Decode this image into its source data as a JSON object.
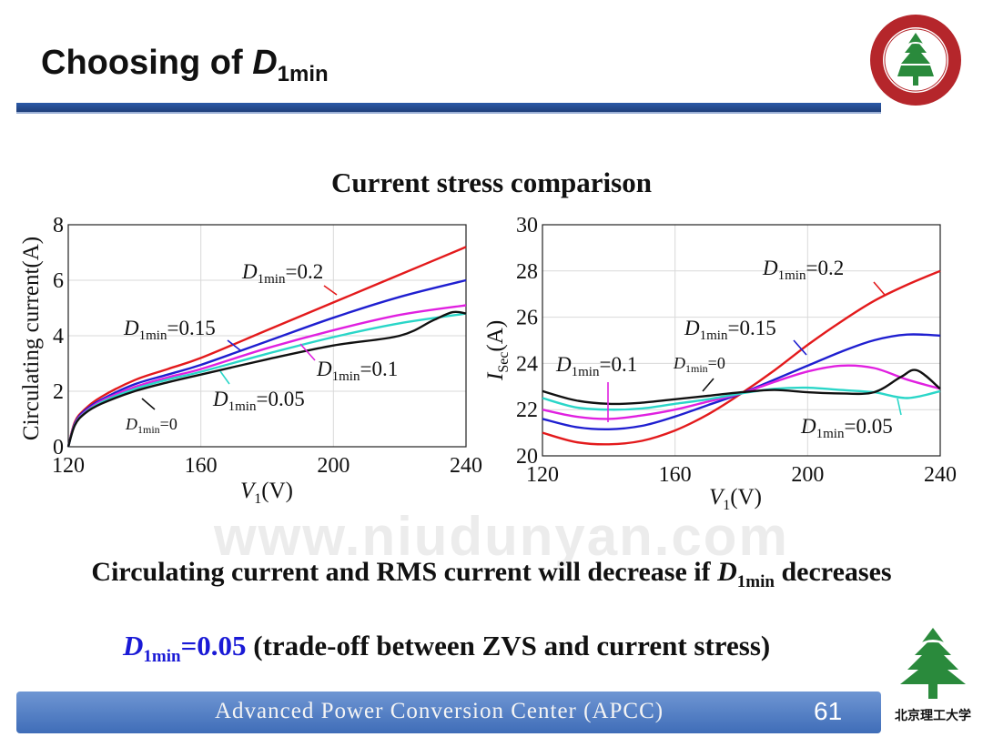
{
  "slide": {
    "title_text": "Choosing of",
    "title_var": "D",
    "title_sub": "1min",
    "subtitle": "Current stress comparison",
    "conclusion_pre": "Circulating current and RMS current will decrease if ",
    "conclusion_var": "D",
    "conclusion_sub": "1min",
    "conclusion_post": " decreases",
    "choice_var": "D",
    "choice_sub": "1min",
    "choice_value": "=0.05",
    "choice_note": " (trade-off between ZVS and current stress)",
    "footer_text": "Advanced  Power  Conversion  Center (APCC)",
    "page_number": "61",
    "watermark": "www.niudunyan.com",
    "logo_bottom_text": "北京理工大学",
    "colors": {
      "rule": "#2b5aa8",
      "footer": "#4f7cc2",
      "highlight": "#1a1ad6"
    }
  },
  "chart_data": [
    {
      "type": "line",
      "ylabel": "Circulating current(A)",
      "xlabel_var": "V",
      "xlabel_sub": "1",
      "xlabel_unit": "(V)",
      "xlim": [
        120,
        240
      ],
      "ylim": [
        0,
        8
      ],
      "xticks": [
        "120",
        "160",
        "200",
        "240"
      ],
      "yticks": [
        "0",
        "2",
        "4",
        "6",
        "8"
      ],
      "grid": true,
      "series": [
        {
          "name": "D1min=0.2",
          "color": "#e31a1c",
          "x": [
            120,
            122,
            125,
            130,
            140,
            150,
            160,
            180,
            200,
            220,
            240
          ],
          "y": [
            0,
            0.9,
            1.35,
            1.8,
            2.4,
            2.8,
            3.2,
            4.2,
            5.2,
            6.2,
            7.2
          ]
        },
        {
          "name": "D1min=0.15",
          "color": "#1f1fd0",
          "x": [
            120,
            122,
            125,
            130,
            140,
            150,
            160,
            180,
            200,
            220,
            240
          ],
          "y": [
            0,
            0.85,
            1.3,
            1.7,
            2.25,
            2.6,
            2.95,
            3.8,
            4.65,
            5.4,
            6.0
          ]
        },
        {
          "name": "D1min=0.1",
          "color": "#e020e0",
          "x": [
            120,
            122,
            125,
            130,
            140,
            150,
            160,
            180,
            200,
            220,
            240
          ],
          "y": [
            0,
            0.82,
            1.25,
            1.65,
            2.15,
            2.5,
            2.8,
            3.55,
            4.2,
            4.75,
            5.1
          ]
        },
        {
          "name": "D1min=0.05",
          "color": "#2ad6c8",
          "x": [
            120,
            122,
            125,
            130,
            140,
            150,
            160,
            180,
            200,
            220,
            240
          ],
          "y": [
            0,
            0.8,
            1.22,
            1.6,
            2.08,
            2.42,
            2.7,
            3.35,
            3.95,
            4.45,
            4.8
          ]
        },
        {
          "name": "D1min=0",
          "color": "#111111",
          "x": [
            120,
            122,
            125,
            130,
            140,
            150,
            160,
            180,
            200,
            220,
            230,
            236,
            240
          ],
          "y": [
            0,
            0.78,
            1.2,
            1.55,
            2.0,
            2.32,
            2.6,
            3.15,
            3.65,
            4.0,
            4.55,
            4.85,
            4.8
          ]
        }
      ],
      "annotations": [
        {
          "var": "D",
          "sub": "1min",
          "value": "=0.2"
        },
        {
          "var": "D",
          "sub": "1min",
          "value": "=0.15"
        },
        {
          "var": "D",
          "sub": "1min",
          "value": "=0.1"
        },
        {
          "var": "D",
          "sub": "1min",
          "value": "=0.05"
        },
        {
          "var": "D",
          "sub": "1min",
          "value": "=0"
        }
      ]
    },
    {
      "type": "line",
      "ylabel": "I_Sec(A)",
      "ylabel_var": "I",
      "ylabel_sub": "Sec",
      "ylabel_unit": "(A)",
      "xlabel_var": "V",
      "xlabel_sub": "1",
      "xlabel_unit": "(V)",
      "xlim": [
        120,
        240
      ],
      "ylim": [
        20,
        30
      ],
      "xticks": [
        "120",
        "160",
        "200",
        "240"
      ],
      "yticks": [
        "20",
        "22",
        "24",
        "26",
        "28",
        "30"
      ],
      "grid": true,
      "series": [
        {
          "name": "D1min=0.2",
          "color": "#e31a1c",
          "x": [
            120,
            130,
            140,
            150,
            160,
            170,
            180,
            190,
            200,
            210,
            220,
            230,
            240
          ],
          "y": [
            21.0,
            20.6,
            20.5,
            20.65,
            21.1,
            21.8,
            22.7,
            23.7,
            24.8,
            25.8,
            26.7,
            27.4,
            28.0
          ]
        },
        {
          "name": "D1min=0.15",
          "color": "#1f1fd0",
          "x": [
            120,
            130,
            140,
            150,
            160,
            170,
            180,
            190,
            200,
            210,
            220,
            230,
            240
          ],
          "y": [
            21.6,
            21.25,
            21.15,
            21.3,
            21.7,
            22.2,
            22.7,
            23.3,
            23.9,
            24.5,
            25.0,
            25.25,
            25.2
          ]
        },
        {
          "name": "D1min=0.1",
          "color": "#e020e0",
          "x": [
            120,
            130,
            140,
            150,
            160,
            170,
            180,
            190,
            200,
            210,
            220,
            230,
            240
          ],
          "y": [
            22.0,
            21.7,
            21.6,
            21.75,
            22.0,
            22.35,
            22.7,
            23.2,
            23.65,
            23.9,
            23.8,
            23.3,
            22.9
          ]
        },
        {
          "name": "D1min=0.05",
          "color": "#2ad6c8",
          "x": [
            120,
            130,
            140,
            150,
            160,
            170,
            180,
            190,
            200,
            210,
            220,
            230,
            240
          ],
          "y": [
            22.5,
            22.1,
            22.0,
            22.05,
            22.25,
            22.45,
            22.7,
            22.9,
            22.95,
            22.85,
            22.75,
            22.5,
            22.8
          ]
        },
        {
          "name": "D1min=0",
          "color": "#111111",
          "x": [
            120,
            130,
            140,
            150,
            160,
            170,
            180,
            190,
            200,
            210,
            220,
            228,
            233,
            240
          ],
          "y": [
            22.8,
            22.4,
            22.25,
            22.3,
            22.45,
            22.6,
            22.75,
            22.85,
            22.75,
            22.7,
            22.75,
            23.4,
            23.7,
            22.9
          ]
        }
      ],
      "annotations": [
        {
          "var": "D",
          "sub": "1min",
          "value": "=0.2"
        },
        {
          "var": "D",
          "sub": "1min",
          "value": "=0.15"
        },
        {
          "var": "D",
          "sub": "1min",
          "value": "=0.1"
        },
        {
          "var": "D",
          "sub": "1min",
          "value": "=0"
        },
        {
          "var": "D",
          "sub": "1min",
          "value": "=0.05"
        }
      ]
    }
  ]
}
